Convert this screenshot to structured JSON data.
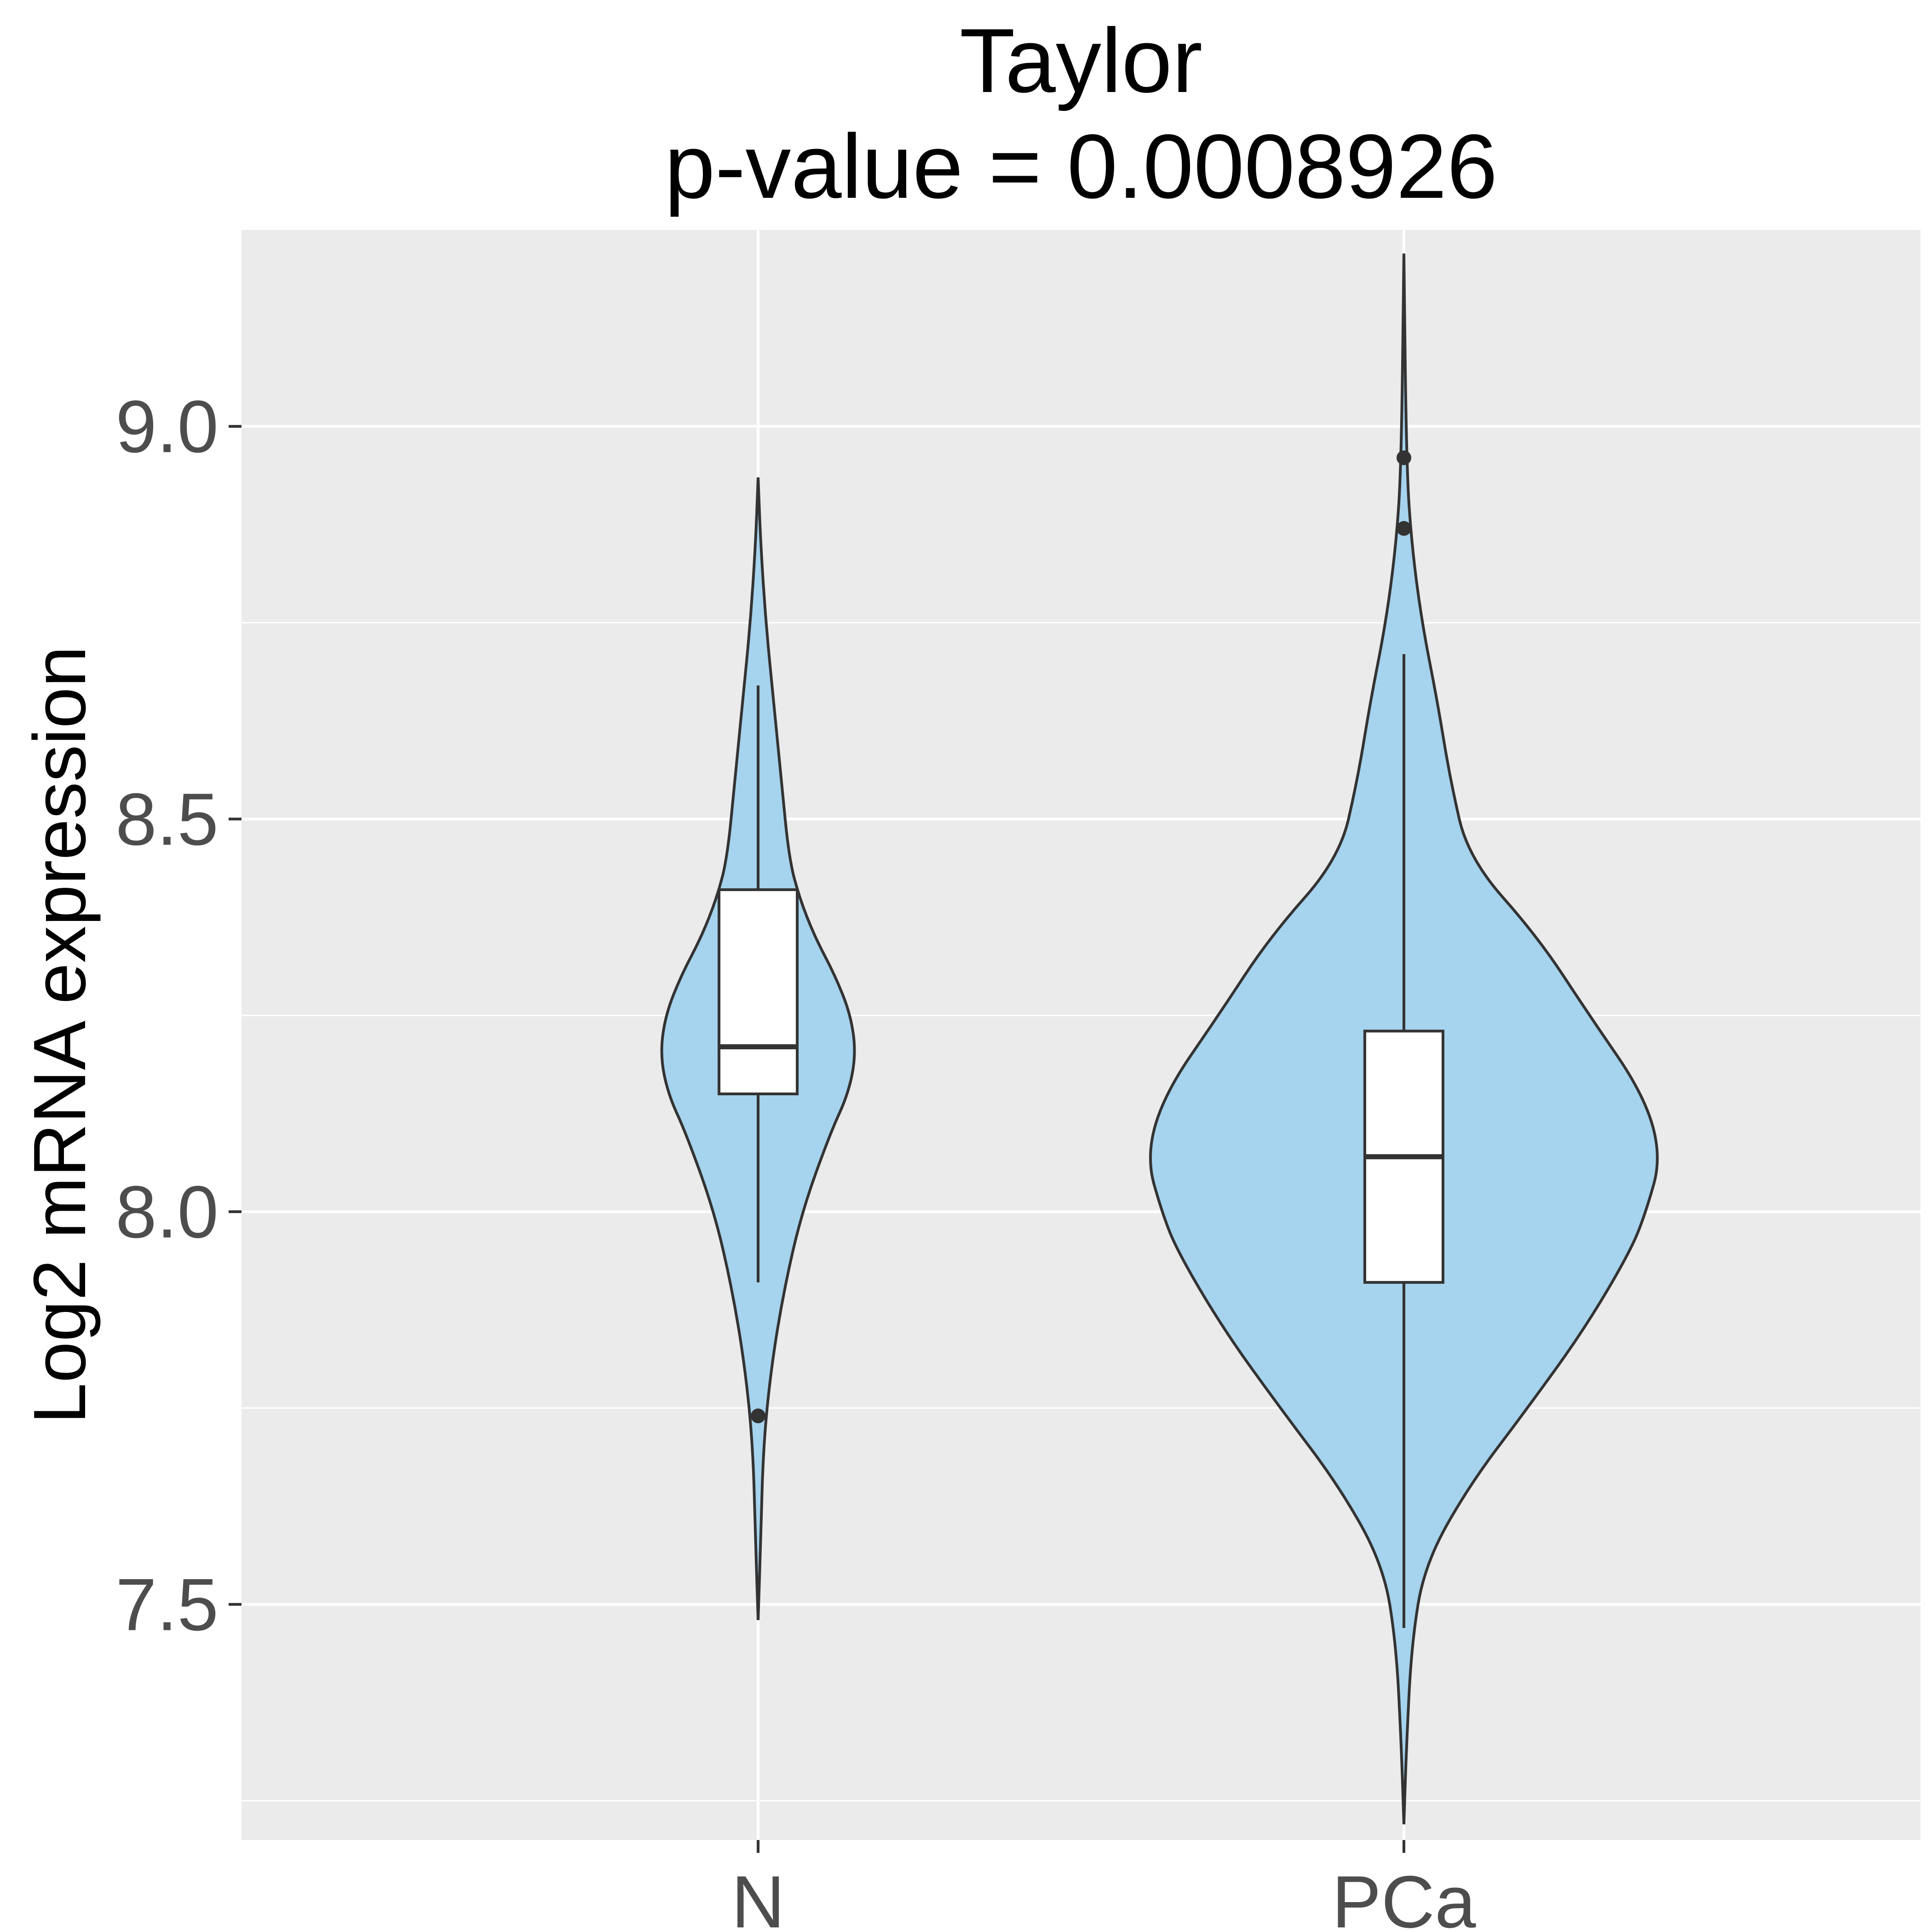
{
  "chart_data": {
    "type": "violin",
    "title": "Taylor",
    "subtitle": "p-value = 0.0008926",
    "xlabel": "",
    "ylabel": "Log2 mRNA expression",
    "ylim": [
      7.2,
      9.25
    ],
    "yticks": [
      7.5,
      8.0,
      8.5,
      9.0
    ],
    "ytick_labels": [
      "7.5",
      "8.0",
      "8.5",
      "9.0"
    ],
    "categories": [
      "N",
      "PCa"
    ],
    "grid": true,
    "violin_fill": "#a6d3ed",
    "box_fill": "#ffffff",
    "stroke_color": "#333333",
    "panel_background": "#ebebeb",
    "groups": [
      {
        "name": "N",
        "box": {
          "lower_whisker": 7.91,
          "q1": 8.15,
          "median": 8.21,
          "q3": 8.41,
          "upper_whisker": 8.67
        },
        "outliers": [
          7.74
        ],
        "density": [
          [
            7.48,
            0.0
          ],
          [
            7.58,
            0.01
          ],
          [
            7.7,
            0.02
          ],
          [
            7.8,
            0.05
          ],
          [
            7.9,
            0.1
          ],
          [
            8.0,
            0.17
          ],
          [
            8.1,
            0.28
          ],
          [
            8.15,
            0.35
          ],
          [
            8.2,
            0.38
          ],
          [
            8.25,
            0.36
          ],
          [
            8.3,
            0.3
          ],
          [
            8.35,
            0.22
          ],
          [
            8.4,
            0.16
          ],
          [
            8.45,
            0.12
          ],
          [
            8.55,
            0.09
          ],
          [
            8.65,
            0.06
          ],
          [
            8.75,
            0.03
          ],
          [
            8.85,
            0.01
          ],
          [
            8.935,
            0.0
          ]
        ]
      },
      {
        "name": "PCa",
        "box": {
          "lower_whisker": 7.47,
          "q1": 7.91,
          "median": 8.07,
          "q3": 8.23,
          "upper_whisker": 8.71
        },
        "outliers": [
          8.87,
          8.96
        ],
        "density": [
          [
            7.22,
            0.0
          ],
          [
            7.32,
            0.01
          ],
          [
            7.45,
            0.03
          ],
          [
            7.55,
            0.08
          ],
          [
            7.65,
            0.25
          ],
          [
            7.75,
            0.48
          ],
          [
            7.85,
            0.7
          ],
          [
            7.95,
            0.88
          ],
          [
            8.0,
            0.94
          ],
          [
            8.07,
            1.0
          ],
          [
            8.15,
            0.93
          ],
          [
            8.25,
            0.72
          ],
          [
            8.35,
            0.52
          ],
          [
            8.45,
            0.25
          ],
          [
            8.55,
            0.18
          ],
          [
            8.65,
            0.13
          ],
          [
            8.75,
            0.07
          ],
          [
            8.85,
            0.03
          ],
          [
            8.95,
            0.01
          ],
          [
            9.22,
            0.0
          ]
        ]
      }
    ]
  }
}
